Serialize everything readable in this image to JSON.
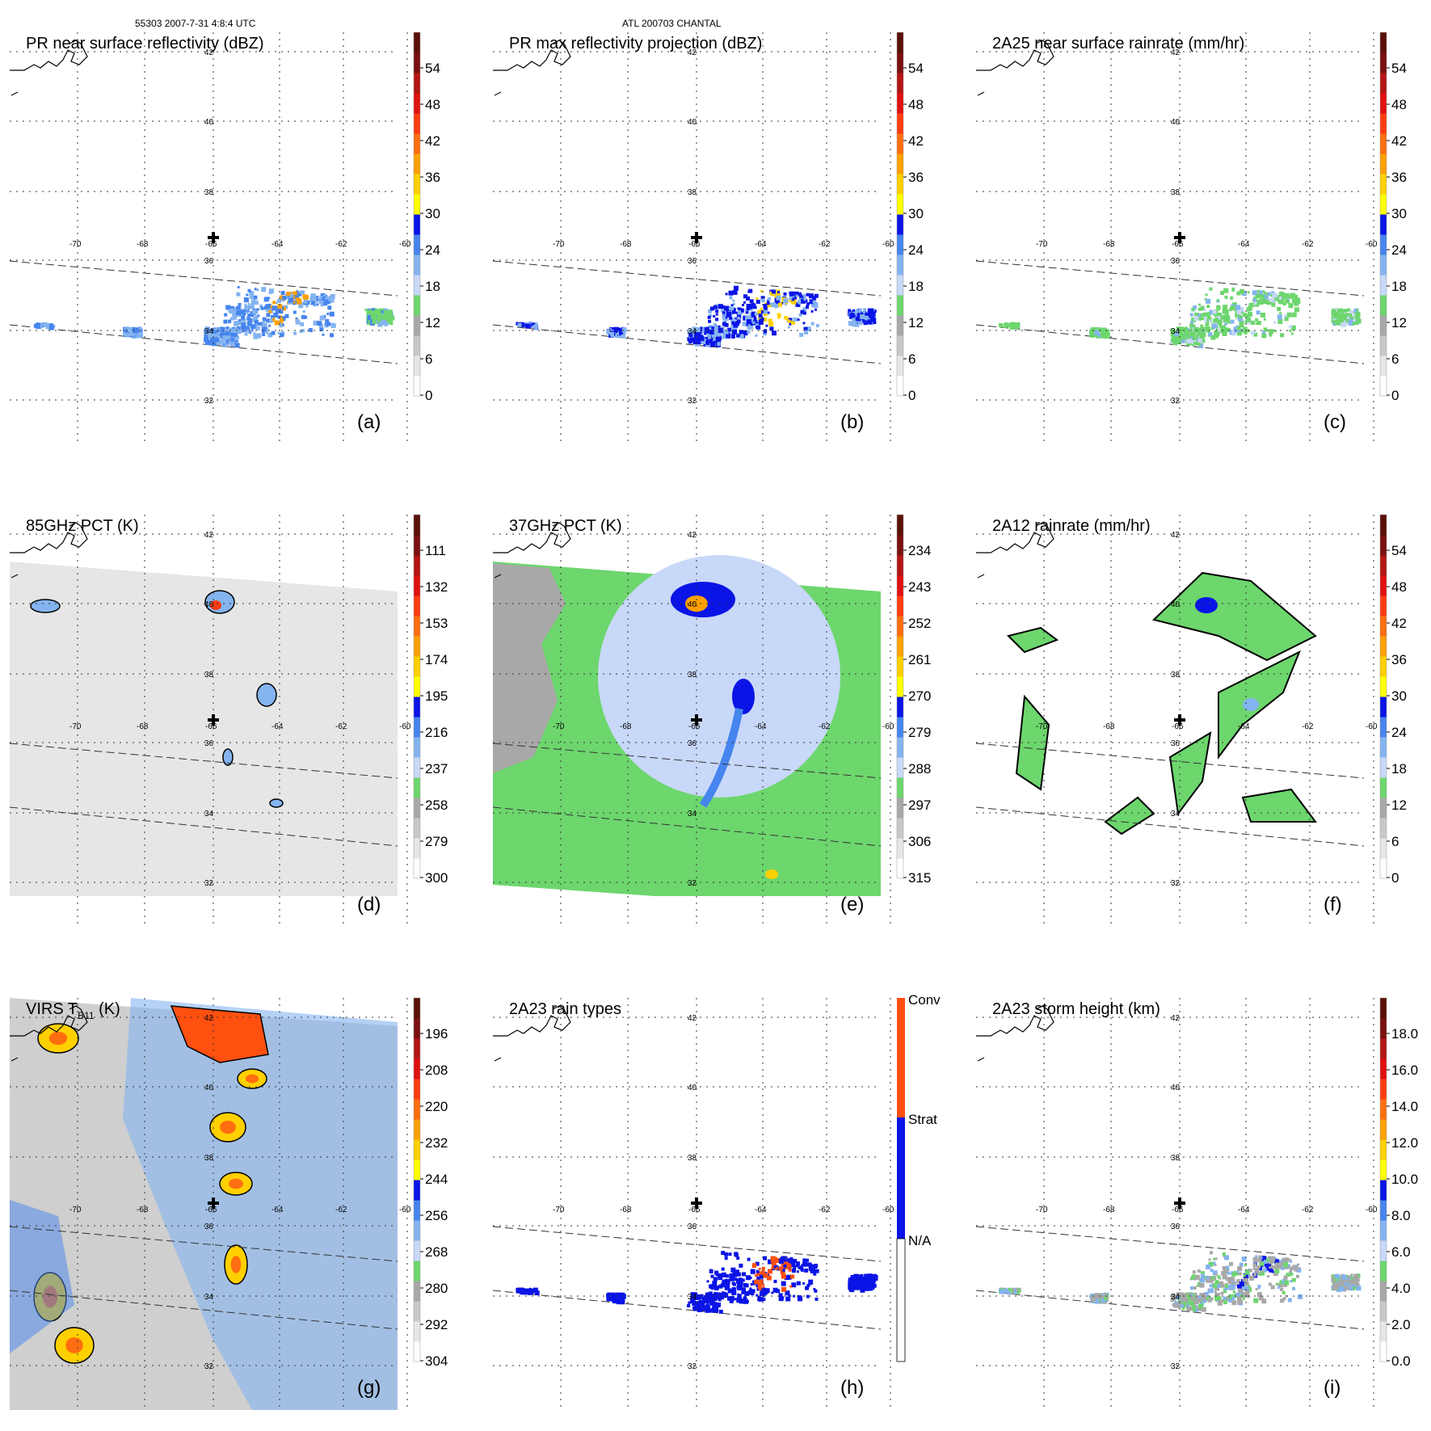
{
  "header": {
    "left": "55303 2007-7-31 4:8:4 UTC",
    "center": "ATL 200703 CHANTAL"
  },
  "lon_labels": [
    "-70",
    "-68",
    "-66",
    "-64",
    "-62",
    "-60"
  ],
  "lat_labels": [
    "42",
    "40",
    "38",
    "36",
    "34",
    "32"
  ],
  "chart_data": [
    {
      "id": "a",
      "type": "heatmap",
      "title": "PR near surface reflectivity (dBZ)",
      "panel_label": "(a)",
      "field": "swath",
      "colorbar": {
        "ticks": [
          "54",
          "48",
          "42",
          "36",
          "30",
          "24",
          "18",
          "12",
          "6",
          "0"
        ]
      }
    },
    {
      "id": "b",
      "type": "heatmap",
      "title": "PR max reflectivity projection (dBZ)",
      "panel_label": "(b)",
      "field": "swath",
      "colorbar": {
        "ticks": [
          "54",
          "48",
          "42",
          "36",
          "30",
          "24",
          "18",
          "12",
          "6",
          "0"
        ]
      }
    },
    {
      "id": "c",
      "type": "heatmap",
      "title": "2A25 near surface rainrate (mm/hr)",
      "panel_label": "(c)",
      "field": "swath",
      "colorbar": {
        "ticks": [
          "54",
          "48",
          "42",
          "36",
          "30",
          "24",
          "18",
          "12",
          "6",
          "0"
        ]
      }
    },
    {
      "id": "d",
      "type": "heatmap",
      "title": "85GHz PCT (K)",
      "panel_label": "(d)",
      "field": "pct85",
      "colorbar": {
        "ticks": [
          "111",
          "132",
          "153",
          "174",
          "195",
          "216",
          "237",
          "258",
          "279",
          "300"
        ]
      }
    },
    {
      "id": "e",
      "type": "heatmap",
      "title": "37GHz PCT (K)",
      "panel_label": "(e)",
      "field": "pct37",
      "colorbar": {
        "ticks": [
          "234",
          "243",
          "252",
          "261",
          "270",
          "279",
          "288",
          "297",
          "306",
          "315"
        ]
      }
    },
    {
      "id": "f",
      "type": "heatmap",
      "title": "2A12 rainrate (mm/hr)",
      "panel_label": "(f)",
      "field": "rain12",
      "colorbar": {
        "ticks": [
          "54",
          "48",
          "42",
          "36",
          "30",
          "24",
          "18",
          "12",
          "6",
          "0"
        ]
      }
    },
    {
      "id": "g",
      "type": "heatmap",
      "title": "VIRS T",
      "title_sub": "B11",
      "title_unit": " (K)",
      "panel_label": "(g)",
      "field": "virs",
      "colorbar": {
        "ticks": [
          "196",
          "208",
          "220",
          "232",
          "244",
          "256",
          "268",
          "280",
          "292",
          "304"
        ]
      }
    },
    {
      "id": "h",
      "type": "heatmap",
      "title": "2A23 rain types",
      "panel_label": "(h)",
      "field": "swath",
      "colorbar": {
        "categorical": true,
        "ticks": [
          "Conv",
          "Strat",
          "N/A"
        ]
      }
    },
    {
      "id": "i",
      "type": "heatmap",
      "title": "2A23 storm height (km)",
      "panel_label": "(i)",
      "field": "swath",
      "colorbar": {
        "ticks": [
          "18.0",
          "16.0",
          "14.0",
          "12.0",
          "10.0",
          "8.0",
          "6.0",
          "4.0",
          "2.0",
          "0.0"
        ]
      }
    }
  ],
  "colors": {
    "rainbow": [
      "#ffffff",
      "#e6e6e6",
      "#c8c8c8",
      "#a8a8a8",
      "#6dd66d",
      "#52c252",
      "#c8d8f8",
      "#84b4f0",
      "#4684ee",
      "#0a14e6",
      "#ffff00",
      "#ffd000",
      "#ffa000",
      "#ff6e10",
      "#ff3c10",
      "#e01010",
      "#b41414",
      "#7a1010",
      "#5a1008"
    ],
    "raintypes": [
      "#ffffff",
      "#0a14e6",
      "#ff5010"
    ],
    "land_stroke": "#000000"
  }
}
